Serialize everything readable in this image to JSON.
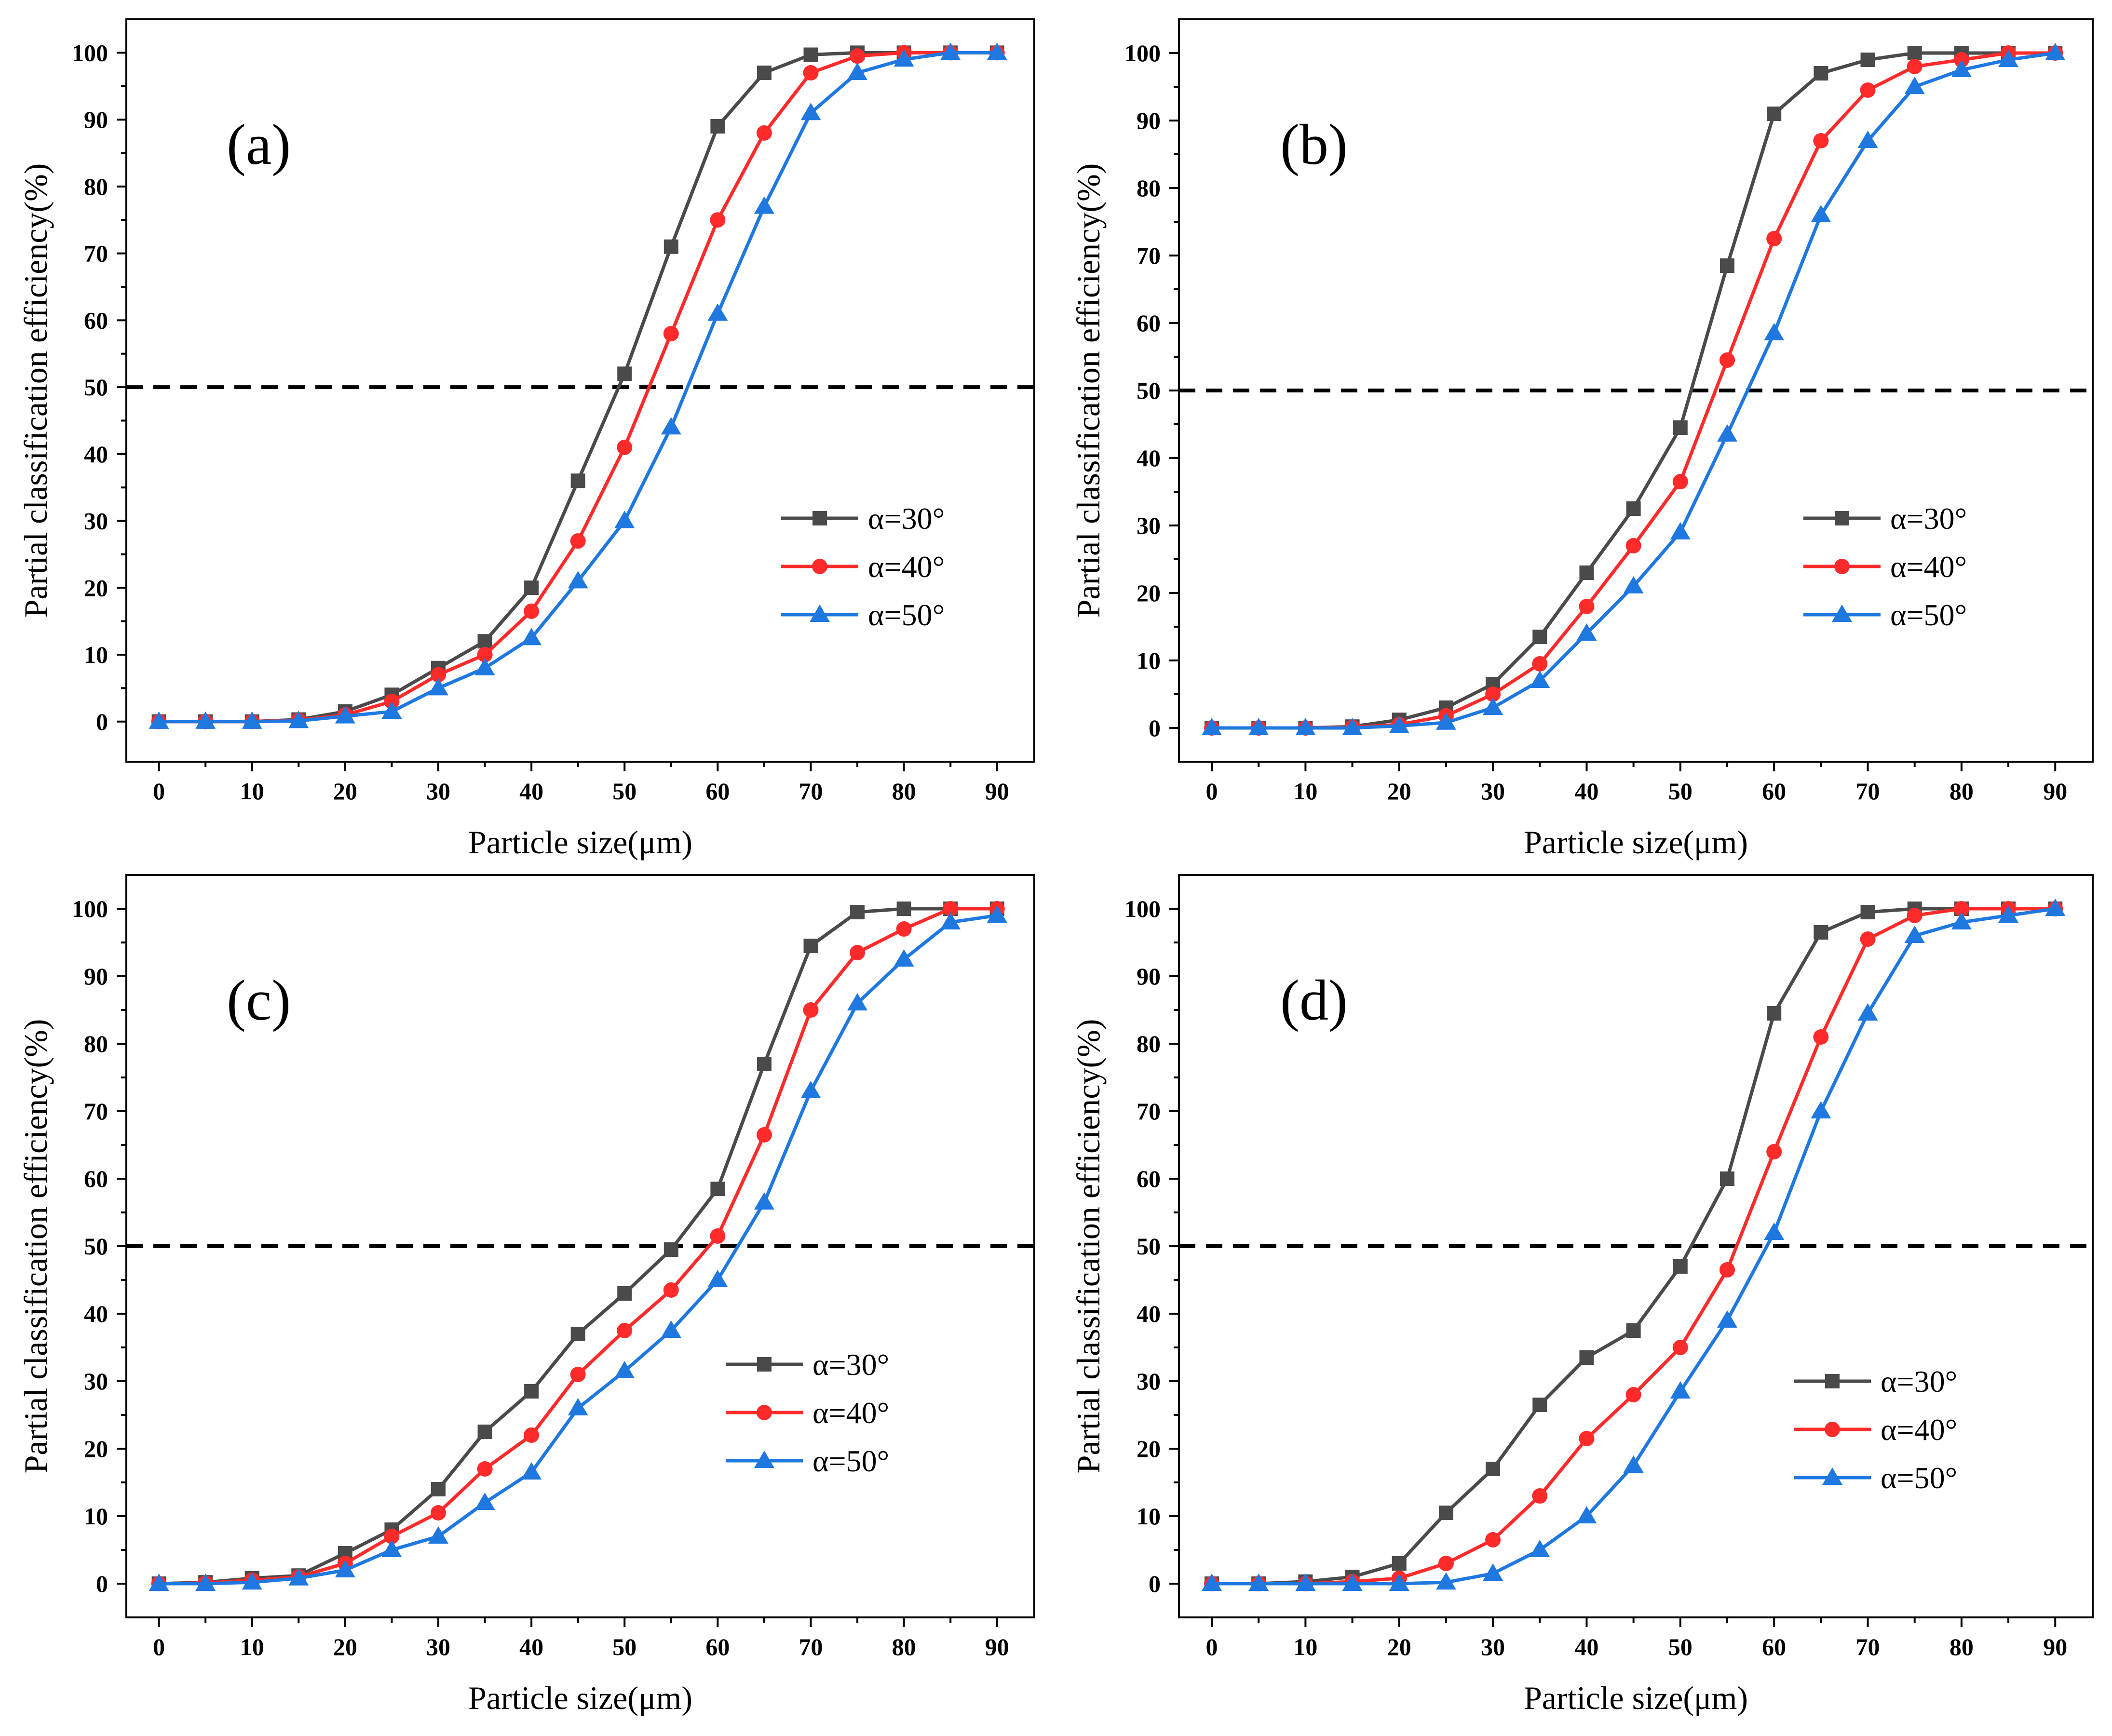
{
  "colors": {
    "alpha30": "#4a4a4a",
    "alpha40": "#ff2b2b",
    "alpha50": "#1e78e0"
  },
  "marker_shapes": {
    "alpha30": "square",
    "alpha40": "circle",
    "alpha50": "triangle"
  },
  "chart_data": [
    {
      "type": "line",
      "panel": "(a)",
      "xlabel": "Particle size(μm)",
      "ylabel": "Partial classification efficiency(%)",
      "xlim": [
        -3.5,
        94
      ],
      "ylim": [
        -6,
        105
      ],
      "xticks": [
        0,
        10,
        20,
        30,
        40,
        50,
        60,
        70,
        80,
        90
      ],
      "yticks": [
        0,
        10,
        20,
        30,
        40,
        50,
        60,
        70,
        80,
        90,
        100
      ],
      "reference_line": 50,
      "legend": [
        "α=30°",
        "α=40°",
        "α=50°"
      ],
      "x": [
        0,
        5,
        10,
        15,
        20,
        25,
        30,
        35,
        40,
        45,
        50,
        55,
        60,
        65,
        70,
        75,
        80,
        85,
        90
      ],
      "series": [
        {
          "name": "α=30°",
          "values": [
            0,
            0,
            0,
            0.3,
            1.5,
            4,
            8,
            12,
            20,
            36,
            52,
            71,
            89,
            97,
            99.7,
            100,
            100,
            100,
            100
          ]
        },
        {
          "name": "α=40°",
          "values": [
            0,
            0,
            0,
            0.2,
            1,
            3,
            7,
            10,
            16.5,
            27,
            41,
            58,
            75,
            88,
            97,
            99.5,
            100,
            100,
            100
          ]
        },
        {
          "name": "α=50°",
          "values": [
            0,
            0,
            0,
            0.1,
            0.8,
            1.5,
            5,
            8,
            12.5,
            21,
            30,
            44,
            61,
            77,
            91,
            97,
            99,
            100,
            100
          ]
        }
      ]
    },
    {
      "type": "line",
      "panel": "(b)",
      "xlabel": "Particle size(μm)",
      "ylabel": "Partial classification efficiency(%)",
      "xlim": [
        -3.5,
        94
      ],
      "ylim": [
        -5,
        105
      ],
      "xticks": [
        0,
        10,
        20,
        30,
        40,
        50,
        60,
        70,
        80,
        90
      ],
      "yticks": [
        0,
        10,
        20,
        30,
        40,
        50,
        60,
        70,
        80,
        90,
        100
      ],
      "reference_line": 50,
      "legend": [
        "α=30°",
        "α=40°",
        "α=50°"
      ],
      "x": [
        0,
        5,
        10,
        15,
        20,
        25,
        30,
        35,
        40,
        45,
        50,
        55,
        60,
        65,
        70,
        75,
        80,
        85,
        90
      ],
      "series": [
        {
          "name": "α=30°",
          "values": [
            0,
            0,
            0,
            0.2,
            1.2,
            3,
            6.5,
            13.5,
            23,
            32.5,
            44.5,
            68.5,
            91,
            97,
            99,
            100,
            100,
            100,
            100
          ]
        },
        {
          "name": "α=40°",
          "values": [
            0,
            0,
            0,
            0.1,
            0.5,
            1.8,
            5,
            9.5,
            18,
            27,
            36.5,
            54.5,
            72.5,
            87,
            94.5,
            98,
            99,
            100,
            100
          ]
        },
        {
          "name": "α=50°",
          "values": [
            0,
            0,
            0,
            0,
            0.3,
            0.8,
            3,
            7,
            14,
            21,
            29,
            43.5,
            58.5,
            76,
            87,
            95,
            97.5,
            99,
            100
          ]
        }
      ]
    },
    {
      "type": "line",
      "panel": "(c)",
      "xlabel": "Particle size(μm)",
      "ylabel": "Partial classification efficiency(%)",
      "xlim": [
        -3.5,
        94
      ],
      "ylim": [
        -5,
        105
      ],
      "xticks": [
        0,
        10,
        20,
        30,
        40,
        50,
        60,
        70,
        80,
        90
      ],
      "yticks": [
        0,
        10,
        20,
        30,
        40,
        50,
        60,
        70,
        80,
        90,
        100
      ],
      "reference_line": 50,
      "legend": [
        "α=30°",
        "α=40°",
        "α=50°"
      ],
      "x": [
        0,
        5,
        10,
        15,
        20,
        25,
        30,
        35,
        40,
        45,
        50,
        55,
        60,
        65,
        70,
        75,
        80,
        85,
        90
      ],
      "series": [
        {
          "name": "α=30°",
          "values": [
            0,
            0.2,
            0.8,
            1.2,
            4.5,
            8,
            14,
            22.5,
            28.5,
            37,
            43,
            49.5,
            58.5,
            77,
            94.5,
            99.5,
            100,
            100,
            100
          ]
        },
        {
          "name": "α=40°",
          "values": [
            0,
            0.1,
            0.5,
            1,
            3,
            7,
            10.5,
            17,
            22,
            31,
            37.5,
            43.5,
            51.5,
            66.5,
            85,
            93.5,
            97,
            100,
            100
          ]
        },
        {
          "name": "α=50°",
          "values": [
            0,
            0,
            0.2,
            0.8,
            2,
            5,
            7,
            12,
            16.5,
            26,
            31.5,
            37.5,
            45,
            56.5,
            73,
            86,
            92.5,
            98,
            99
          ]
        }
      ]
    },
    {
      "type": "line",
      "panel": "(d)",
      "xlabel": "Particle size(μm)",
      "ylabel": "Partial classification efficiency(%)",
      "xlim": [
        -3.5,
        94
      ],
      "ylim": [
        -5,
        105
      ],
      "xticks": [
        0,
        10,
        20,
        30,
        40,
        50,
        60,
        70,
        80,
        90
      ],
      "yticks": [
        0,
        10,
        20,
        30,
        40,
        50,
        60,
        70,
        80,
        90,
        100
      ],
      "reference_line": 50,
      "legend": [
        "α=30°",
        "α=40°",
        "α=50°"
      ],
      "x": [
        0,
        5,
        10,
        15,
        20,
        25,
        30,
        35,
        40,
        45,
        50,
        55,
        60,
        65,
        70,
        75,
        80,
        85,
        90
      ],
      "series": [
        {
          "name": "α=30°",
          "values": [
            0,
            0,
            0.3,
            1,
            3,
            10.5,
            17,
            26.5,
            33.5,
            37.5,
            47,
            60,
            84.5,
            96.5,
            99.5,
            100,
            100,
            100,
            100
          ]
        },
        {
          "name": "α=40°",
          "values": [
            0,
            0,
            0,
            0.3,
            0.8,
            3,
            6.5,
            13,
            21.5,
            28,
            35,
            46.5,
            64,
            81,
            95.5,
            99,
            100,
            100,
            100
          ]
        },
        {
          "name": "α=50°",
          "values": [
            0,
            0,
            0,
            0,
            0,
            0.2,
            1.5,
            5,
            10,
            17.5,
            28.5,
            39,
            52,
            70,
            84.5,
            96,
            98,
            99,
            100
          ]
        }
      ]
    }
  ]
}
